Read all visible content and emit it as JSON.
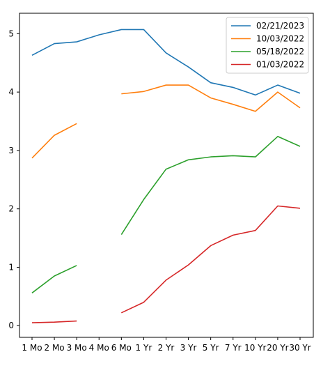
{
  "chart_data": {
    "type": "line",
    "title": "",
    "xlabel": "",
    "ylabel": "",
    "categories": [
      "1 Mo",
      "2 Mo",
      "3 Mo",
      "4 Mo",
      "6 Mo",
      "1 Yr",
      "2 Yr",
      "3 Yr",
      "5 Yr",
      "7 Yr",
      "10 Yr",
      "20 Yr",
      "30 Yr"
    ],
    "ylim": [
      -0.2,
      5.35
    ],
    "yticks": [
      0,
      1,
      2,
      3,
      4,
      5
    ],
    "grid": false,
    "legend_position": "top-right",
    "series": [
      {
        "name": "02/21/2023",
        "color": "#1f77b4",
        "values": [
          4.63,
          4.83,
          4.86,
          4.98,
          5.07,
          5.07,
          4.67,
          4.43,
          4.16,
          4.08,
          3.95,
          4.12,
          3.98
        ]
      },
      {
        "name": "10/03/2022",
        "color": "#ff7f0e",
        "values": [
          2.87,
          3.26,
          3.46,
          null,
          3.97,
          4.01,
          4.12,
          4.12,
          3.9,
          3.79,
          3.67,
          4.0,
          3.73
        ]
      },
      {
        "name": "05/18/2022",
        "color": "#2ca02c",
        "values": [
          0.56,
          0.85,
          1.03,
          null,
          1.56,
          2.16,
          2.68,
          2.84,
          2.89,
          2.91,
          2.89,
          3.24,
          3.07
        ]
      },
      {
        "name": "01/03/2022",
        "color": "#d62728",
        "values": [
          0.05,
          0.06,
          0.08,
          null,
          0.22,
          0.4,
          0.78,
          1.04,
          1.37,
          1.55,
          1.63,
          2.05,
          2.01
        ]
      }
    ]
  }
}
